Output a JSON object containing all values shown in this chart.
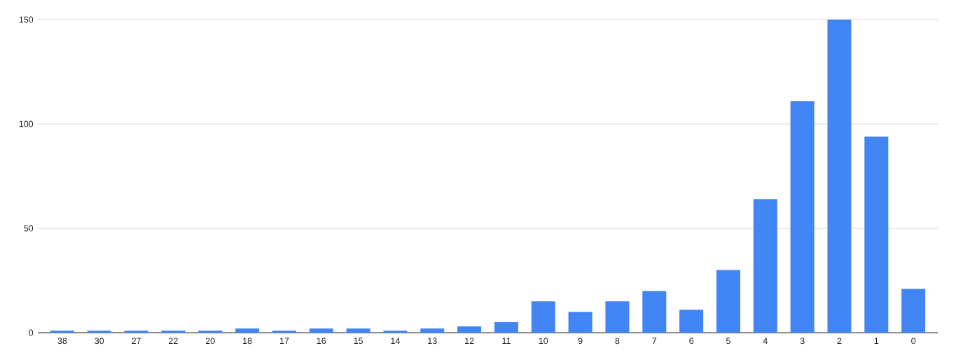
{
  "chart_data": {
    "type": "bar",
    "categories": [
      "38",
      "30",
      "27",
      "22",
      "20",
      "18",
      "17",
      "16",
      "15",
      "14",
      "13",
      "12",
      "11",
      "10",
      "9",
      "8",
      "7",
      "6",
      "5",
      "4",
      "3",
      "2",
      "1",
      "0"
    ],
    "values": [
      1,
      1,
      1,
      1,
      1,
      2,
      1,
      2,
      2,
      1,
      2,
      3,
      5,
      15,
      10,
      15,
      20,
      11,
      30,
      64,
      111,
      150,
      94,
      21
    ],
    "color": "#4285f4",
    "ylim": [
      0,
      150
    ],
    "yticks": [
      0,
      50,
      100,
      150
    ],
    "grid": "y"
  }
}
